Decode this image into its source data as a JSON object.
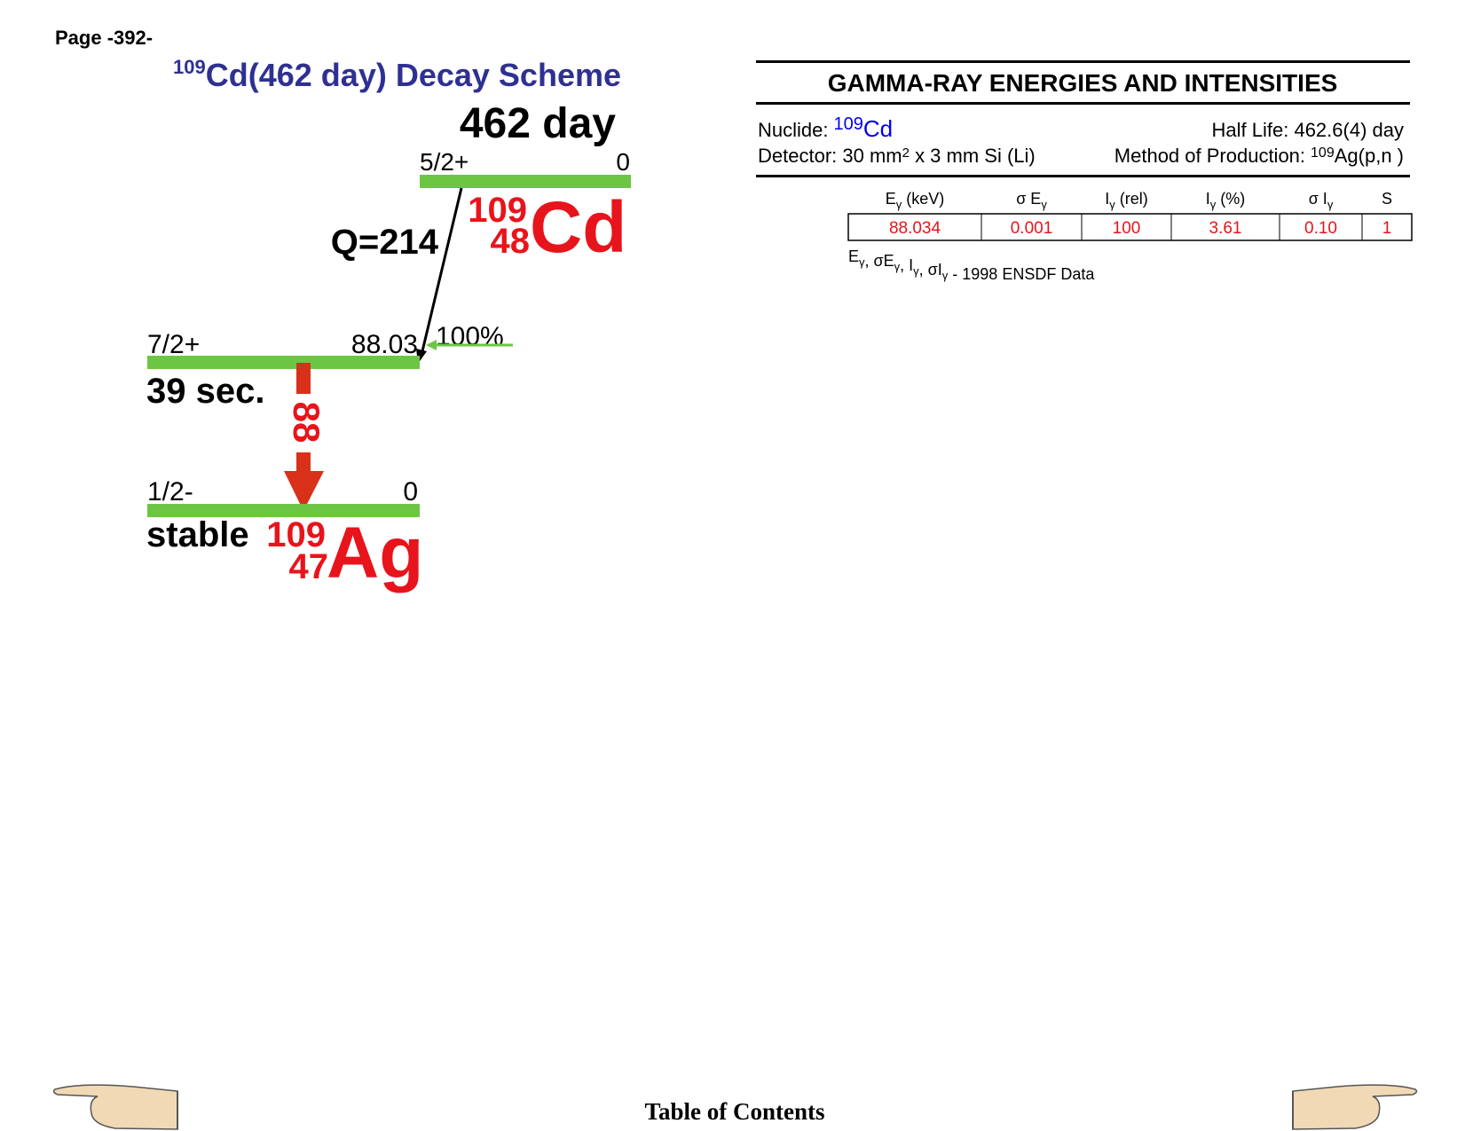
{
  "page": "Page -392-",
  "scheme": {
    "title": {
      "mass": "109",
      "text": "Cd(462 day) Decay Scheme"
    },
    "parent_halflife": "462 day",
    "parent_level": {
      "spin": "5/2+",
      "energy": "0"
    },
    "q_value": "Q=214",
    "parent_nuclide": {
      "mass": "109",
      "z": "48",
      "symbol": "Cd"
    },
    "levels": [
      {
        "spin": "7/2+",
        "energy": "88.03",
        "halflife": "39 sec.",
        "branch": "100%"
      },
      {
        "spin": "1/2-",
        "energy": "0",
        "halflife": "stable"
      }
    ],
    "gamma": "88",
    "daughter": {
      "mass": "109",
      "z": "47",
      "symbol": "Ag"
    }
  },
  "table": {
    "title": "GAMMA-RAY ENERGIES AND INTENSITIES",
    "nuclide": {
      "label": "Nuclide:",
      "mass": "109",
      "symbol": "Cd"
    },
    "half_life": "Half Life: 462.6(4) day",
    "detector": {
      "pre": "Detector: 30 mm",
      "sup": "2",
      "post": " x 3 mm Si (Li)"
    },
    "production": {
      "label": "Method of Production:",
      "mass": "109",
      "reaction": "Ag(p,n )"
    },
    "columns": [
      {
        "main": "E",
        "sub": "γ",
        "suffix": " (keV)"
      },
      {
        "main": "σ E",
        "sub": "γ"
      },
      {
        "main": "I",
        "sub": "γ",
        "suffix": " (rel)"
      },
      {
        "main": "I",
        "sub": "γ",
        "suffix": " (%)"
      },
      {
        "main": "σ I",
        "sub": "γ"
      },
      {
        "main": "S"
      }
    ],
    "rows": [
      [
        "88.034",
        "0.001",
        "100",
        "3.61",
        "0.10",
        "1"
      ]
    ],
    "note": {
      "symbols": [
        {
          "main": "E",
          "sub": "γ"
        },
        {
          "main": ", σE",
          "sub": "γ"
        },
        {
          "main": ", I",
          "sub": "γ"
        },
        {
          "main": ", σI",
          "sub": "γ"
        }
      ],
      "source": " - 1998 ENSDF Data"
    }
  },
  "footer": "Table of Contents"
}
